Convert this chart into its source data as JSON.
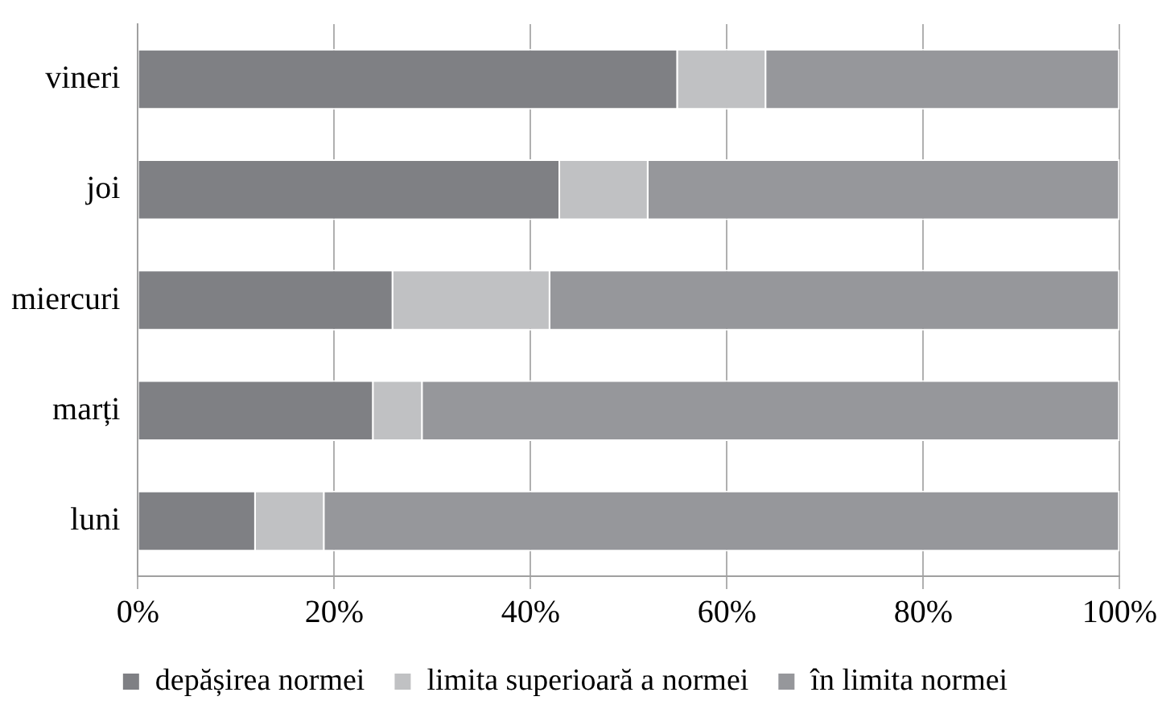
{
  "chart_data": {
    "type": "bar",
    "orientation": "horizontal",
    "stacked": true,
    "categories": [
      "vineri",
      "joi",
      "miercuri",
      "marți",
      "luni"
    ],
    "series": [
      {
        "name": "depășirea normei",
        "color": "#7f8084",
        "values": [
          55,
          43,
          26,
          24,
          12
        ]
      },
      {
        "name": "limita superioară a normei",
        "color": "#c0c1c3",
        "values": [
          9,
          9,
          16,
          5,
          7
        ]
      },
      {
        "name": "în limita normei",
        "color": "#96979b",
        "values": [
          36,
          48,
          58,
          71,
          81
        ]
      }
    ],
    "xlim": [
      0,
      100
    ],
    "xticks": [
      {
        "value": 0,
        "label": "0%"
      },
      {
        "value": 20,
        "label": "20%"
      },
      {
        "value": 40,
        "label": "40%"
      },
      {
        "value": 60,
        "label": "60%"
      },
      {
        "value": 80,
        "label": "80%"
      },
      {
        "value": 100,
        "label": "100%"
      }
    ],
    "grid": "x",
    "legend": "bottom"
  }
}
